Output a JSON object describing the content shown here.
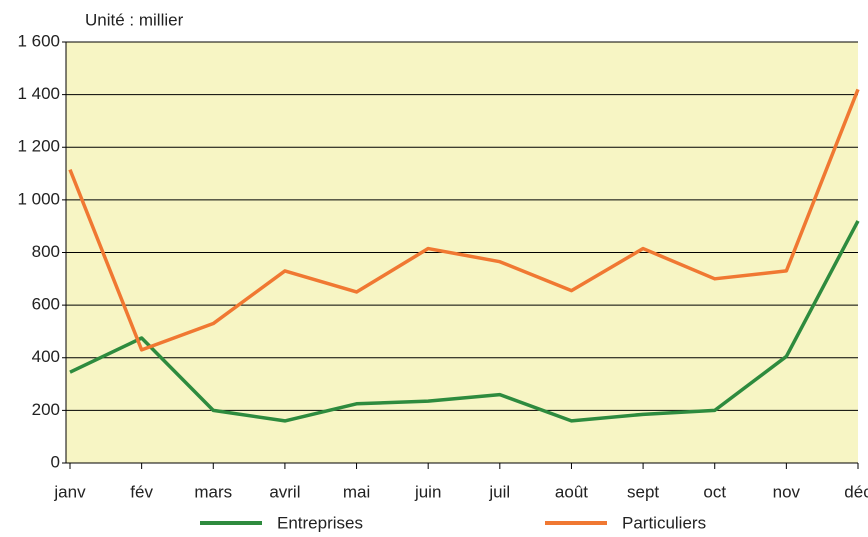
{
  "chart_data": {
    "type": "line",
    "annotation": "Unité : millier",
    "categories": [
      "janv",
      "fév",
      "mars",
      "avril",
      "mai",
      "juin",
      "juil",
      "août",
      "sept",
      "oct",
      "nov",
      "déc"
    ],
    "series": [
      {
        "name": "Entreprises",
        "color": "#2e8b3e",
        "values": [
          345,
          475,
          200,
          160,
          225,
          235,
          260,
          160,
          185,
          200,
          405,
          920
        ]
      },
      {
        "name": "Particuliers",
        "color": "#f07832",
        "values": [
          1115,
          430,
          530,
          730,
          650,
          815,
          765,
          655,
          815,
          700,
          730,
          1420
        ]
      }
    ],
    "ylim": [
      0,
      1600
    ],
    "yticks": [
      0,
      200,
      400,
      600,
      800,
      {
        "value": 1000,
        "label": "1 000"
      },
      {
        "value": 1200,
        "label": "1 200"
      },
      {
        "value": 1400,
        "label": "1 400"
      },
      {
        "value": 1600,
        "label": "1 600"
      }
    ],
    "grid": true,
    "background": "#f7f5c4",
    "legend": "bottom"
  }
}
